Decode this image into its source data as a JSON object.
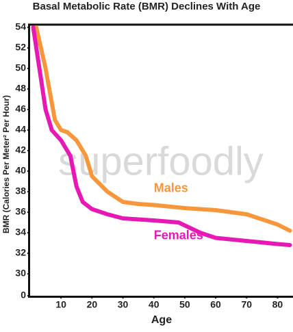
{
  "chart_data": {
    "type": "line",
    "title": "Basal Metabolic Rate (BMR) Declines With Age",
    "x_label": "Age",
    "y_label": "BMR (Calories Per Meter² Per Hour)",
    "watermark": "superfoodly",
    "xlim": [
      0,
      85
    ],
    "xticks": [
      10,
      20,
      30,
      40,
      50,
      60,
      70,
      80
    ],
    "ylim": [
      0,
      54
    ],
    "y_axis_break": [
      0,
      30
    ],
    "yticks": [
      0,
      30,
      32,
      34,
      36,
      38,
      40,
      42,
      44,
      46,
      48,
      50,
      52,
      54
    ],
    "series": [
      {
        "name": "Males",
        "color": "#f7963a",
        "x": [
          2,
          5,
          8,
          10,
          12,
          15,
          18,
          20,
          25,
          30,
          35,
          40,
          50,
          60,
          70,
          80,
          84
        ],
        "values": [
          54,
          50,
          45,
          44,
          43.8,
          43,
          41.5,
          39.5,
          38,
          37,
          36.8,
          36.7,
          36.4,
          36.2,
          35.8,
          34.8,
          34.2
        ]
      },
      {
        "name": "Females",
        "color": "#e619b4",
        "x": [
          1,
          3,
          5,
          7,
          10,
          13,
          15,
          17,
          20,
          25,
          30,
          40,
          48,
          55,
          60,
          70,
          80,
          84
        ],
        "values": [
          54,
          50,
          46,
          44,
          43,
          41.5,
          38.5,
          37,
          36.3,
          35.8,
          35.4,
          35.2,
          35,
          34,
          33.5,
          33.2,
          32.9,
          32.8
        ]
      }
    ],
    "annotations": [
      {
        "text": "Males",
        "x": 40,
        "y": 38.3,
        "color": "#f7963a"
      },
      {
        "text": "Females",
        "x": 40,
        "y": 33.7,
        "color": "#e619b4"
      }
    ]
  }
}
